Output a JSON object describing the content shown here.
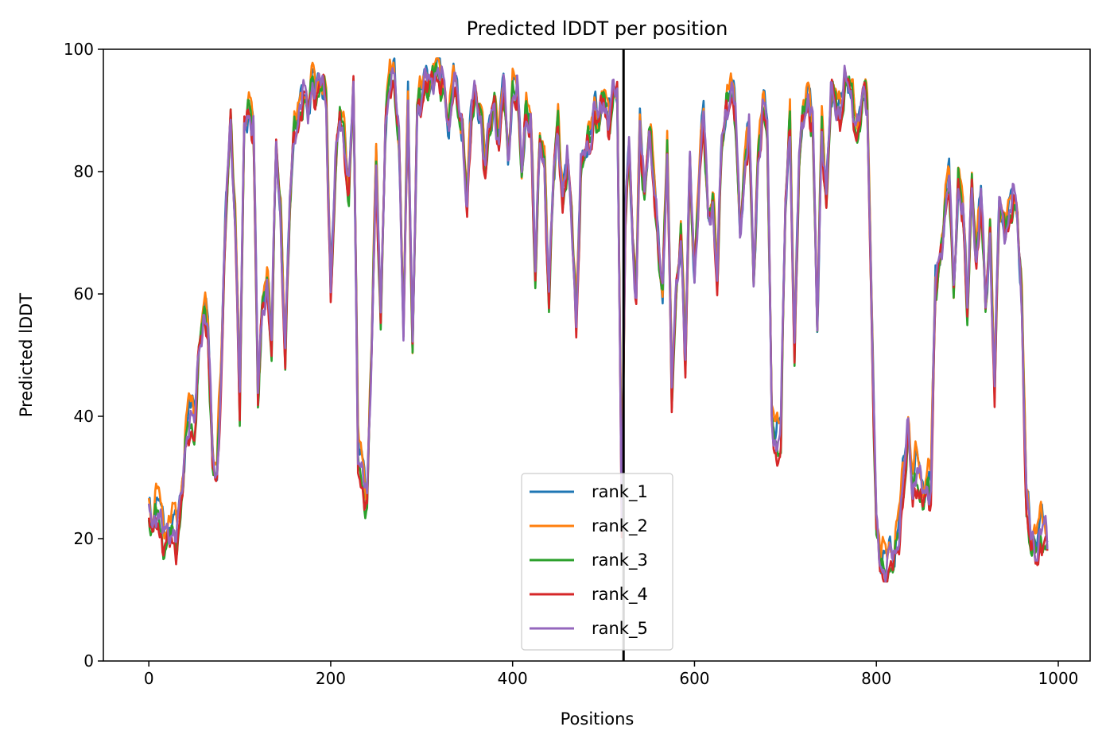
{
  "chart_data": {
    "type": "line",
    "title": "Predicted lDDT per position",
    "xlabel": "Positions",
    "ylabel": "Predicted lDDT",
    "xlim": [
      -50,
      1035
    ],
    "ylim": [
      0,
      100
    ],
    "xticks": [
      0,
      200,
      400,
      600,
      800,
      1000
    ],
    "yticks": [
      0,
      20,
      40,
      60,
      80,
      100
    ],
    "grid": false,
    "legend_position": "lower center",
    "vertical_line_x": 522,
    "series": [
      {
        "name": "rank_1",
        "color": "#1f77b4",
        "offset": 0.6,
        "freq": 0.9
      },
      {
        "name": "rank_2",
        "color": "#ff7f0e",
        "offset": 1.0,
        "freq": 1.3
      },
      {
        "name": "rank_3",
        "color": "#2ca02c",
        "offset": -0.6,
        "freq": 1.7
      },
      {
        "name": "rank_4",
        "color": "#d62728",
        "offset": -0.9,
        "freq": 2.1
      },
      {
        "name": "rank_5",
        "color": "#9467bd",
        "offset": 0.0,
        "freq": 2.5
      }
    ],
    "base_profile": {
      "x": [
        0,
        5,
        10,
        15,
        20,
        25,
        30,
        35,
        40,
        45,
        50,
        55,
        60,
        65,
        70,
        75,
        80,
        85,
        90,
        95,
        100,
        105,
        110,
        115,
        120,
        125,
        130,
        135,
        140,
        145,
        150,
        155,
        160,
        165,
        170,
        175,
        180,
        185,
        190,
        195,
        200,
        205,
        210,
        215,
        220,
        225,
        230,
        235,
        240,
        245,
        250,
        255,
        260,
        265,
        270,
        275,
        280,
        285,
        290,
        295,
        300,
        305,
        310,
        315,
        320,
        325,
        330,
        335,
        340,
        345,
        350,
        355,
        360,
        365,
        370,
        375,
        380,
        385,
        390,
        395,
        400,
        405,
        410,
        415,
        420,
        425,
        430,
        435,
        440,
        445,
        450,
        455,
        460,
        465,
        470,
        475,
        480,
        485,
        490,
        495,
        500,
        505,
        510,
        515,
        520,
        524,
        528,
        532,
        536,
        540,
        545,
        550,
        555,
        560,
        565,
        570,
        575,
        580,
        585,
        590,
        595,
        600,
        605,
        610,
        615,
        620,
        625,
        630,
        635,
        640,
        645,
        650,
        655,
        660,
        665,
        670,
        675,
        680,
        685,
        690,
        695,
        700,
        705,
        710,
        715,
        720,
        725,
        730,
        735,
        740,
        745,
        750,
        755,
        760,
        765,
        770,
        775,
        780,
        785,
        790,
        795,
        800,
        805,
        810,
        815,
        820,
        825,
        830,
        835,
        840,
        845,
        850,
        855,
        860,
        865,
        870,
        875,
        880,
        885,
        890,
        895,
        900,
        905,
        910,
        915,
        920,
        925,
        930,
        935,
        940,
        945,
        950,
        955,
        960,
        965,
        970,
        975,
        980,
        985,
        988
      ],
      "y": [
        24,
        22,
        26,
        21,
        20,
        22,
        21,
        25,
        35,
        41,
        38,
        50,
        57,
        55,
        33,
        30,
        50,
        75,
        88,
        72,
        43,
        88,
        90,
        88,
        44,
        58,
        62,
        52,
        85,
        72,
        50,
        75,
        87,
        89,
        93,
        90,
        95,
        93,
        95,
        92,
        60,
        80,
        90,
        85,
        76,
        95,
        35,
        30,
        26,
        52,
        82,
        55,
        87,
        96,
        95,
        85,
        55,
        92,
        50,
        90,
        93,
        95,
        94,
        97,
        96,
        93,
        87,
        96,
        91,
        86,
        75,
        91,
        92,
        89,
        81,
        88,
        91,
        85,
        95,
        82,
        93,
        94,
        80,
        90,
        88,
        63,
        86,
        81,
        59,
        80,
        88,
        75,
        82,
        73,
        55,
        80,
        84,
        85,
        90,
        88,
        93,
        88,
        92,
        94,
        25,
        72,
        85,
        68,
        60,
        88,
        75,
        87,
        80,
        68,
        60,
        85,
        45,
        60,
        70,
        50,
        82,
        62,
        79,
        90,
        72,
        75,
        63,
        85,
        90,
        94,
        90,
        70,
        80,
        88,
        62,
        82,
        91,
        88,
        40,
        35,
        38,
        75,
        88,
        50,
        82,
        90,
        92,
        88,
        55,
        88,
        75,
        93,
        92,
        89,
        94,
        95,
        90,
        86,
        93,
        92,
        55,
        22,
        16,
        15,
        17,
        17,
        22,
        30,
        38,
        28,
        32,
        27,
        28,
        29,
        62,
        65,
        73,
        80,
        60,
        78,
        75,
        57,
        78,
        65,
        77,
        58,
        70,
        45,
        75,
        71,
        72,
        76,
        73,
        58,
        26,
        20,
        18,
        21,
        22,
        18
      ]
    }
  }
}
